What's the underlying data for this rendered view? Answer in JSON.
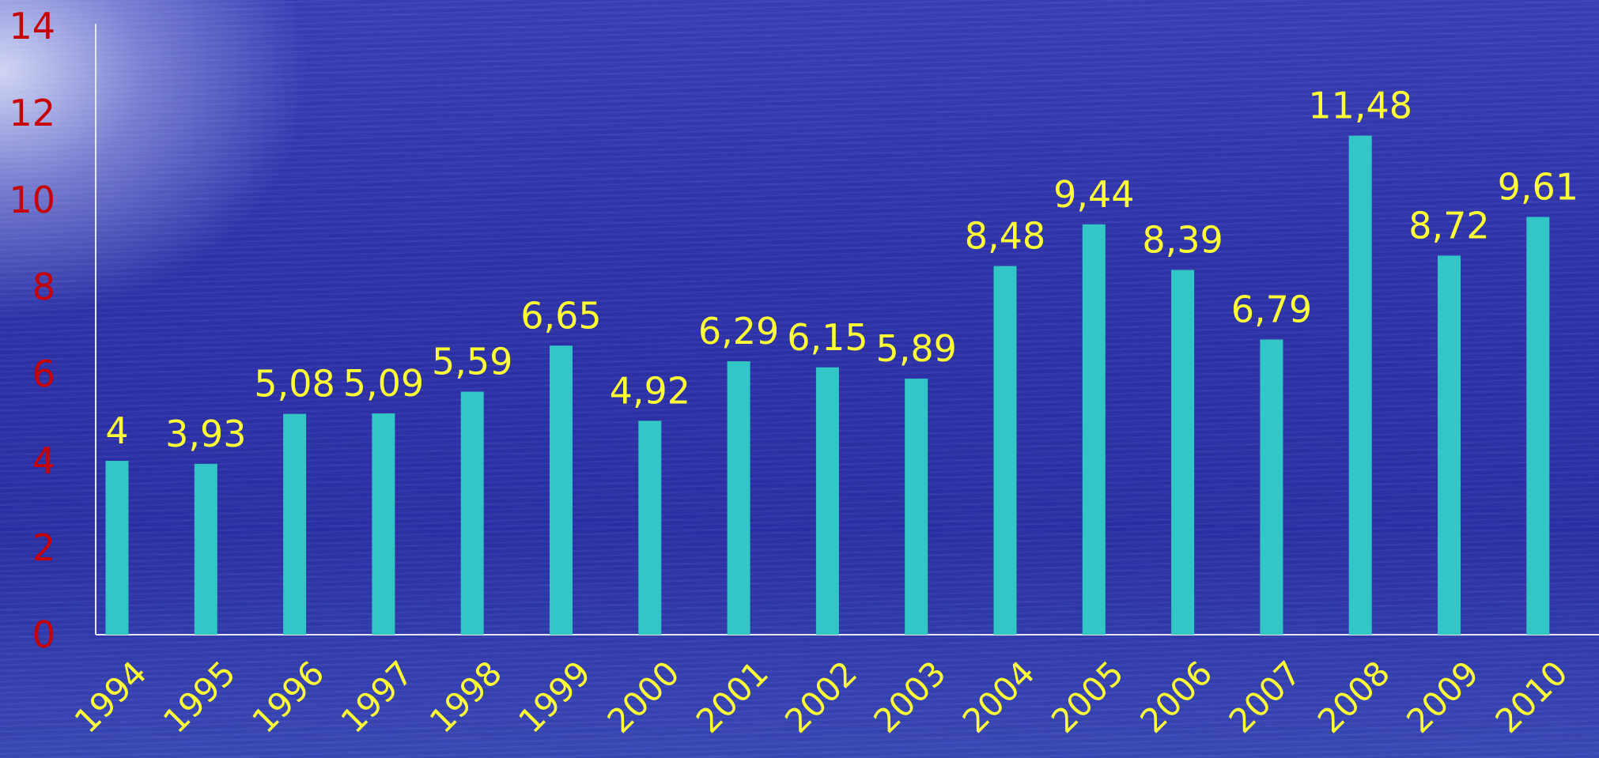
{
  "chart_data": {
    "type": "bar",
    "categories": [
      "1994",
      "1995",
      "1996",
      "1997",
      "1998",
      "1999",
      "2000",
      "2001",
      "2002",
      "2003",
      "2004",
      "2005",
      "2006",
      "2007",
      "2008",
      "2009",
      "2010"
    ],
    "values": [
      4,
      3.93,
      5.08,
      5.09,
      5.59,
      6.65,
      4.92,
      6.29,
      6.15,
      5.89,
      8.48,
      9.44,
      8.39,
      6.79,
      11.48,
      8.72,
      9.61
    ],
    "value_labels": [
      "4",
      "3,93",
      "5,08",
      "5,09",
      "5,59",
      "6,65",
      "4,92",
      "6,29",
      "6,15",
      "5,89",
      "8,48",
      "9,44",
      "8,39",
      "6,79",
      "11,48",
      "8,72",
      "9,61"
    ],
    "y_ticks": [
      "0",
      "2",
      "4",
      "6",
      "8",
      "10",
      "12",
      "14"
    ],
    "ylim": [
      0,
      14
    ],
    "title": "",
    "xlabel": "",
    "ylabel": "",
    "grid": false,
    "colors": {
      "bar": "#33c6c6",
      "value_label": "#ffff33",
      "x_tick_label": "#ffff33",
      "y_tick_label": "#c80000",
      "axis": "#e6e6f0"
    }
  }
}
